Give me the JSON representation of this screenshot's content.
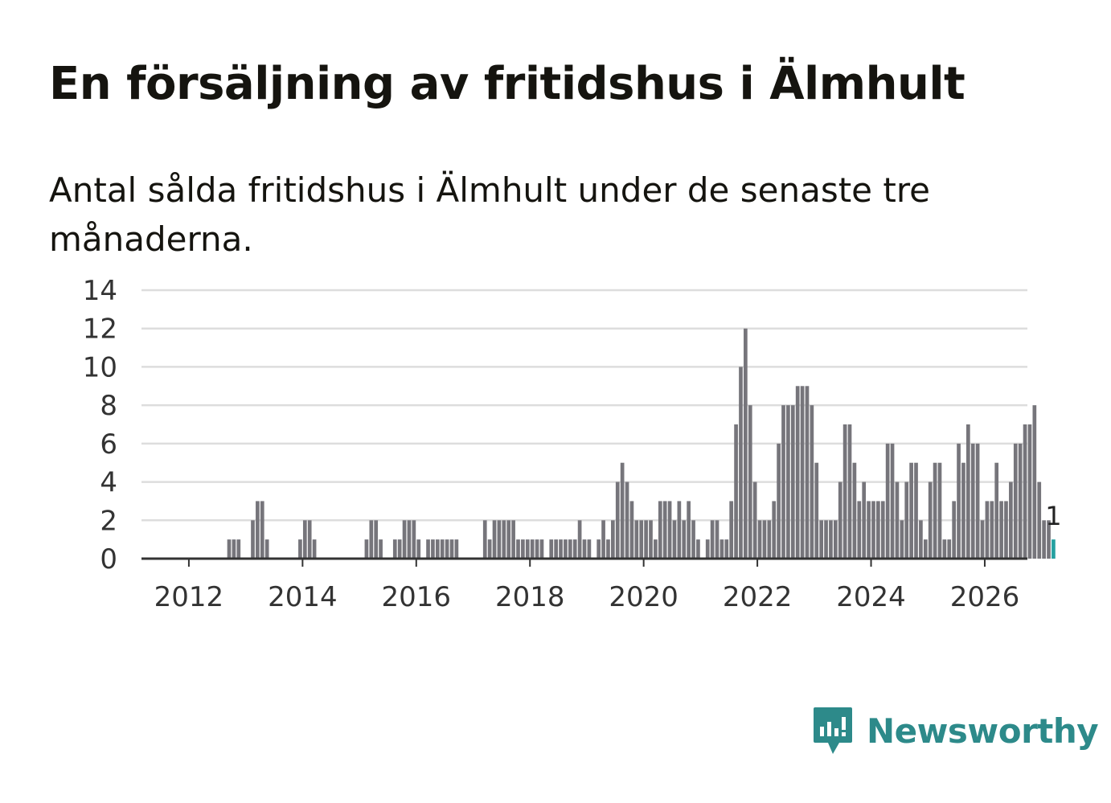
{
  "title": "En försäljning av fritidshus i Älmhult",
  "subtitle": "Antal sålda fritidshus i Älmhult under de senaste tre månaderna.",
  "brand": "Newsworthy",
  "colors": {
    "bar": "#76757b",
    "highlight": "#24a0a0",
    "brand": "#2d8a8a"
  },
  "chart_data": {
    "type": "bar",
    "title": "En försäljning av fritidshus i Älmhult",
    "xlabel": "",
    "ylabel": "",
    "ylim": [
      0,
      14
    ],
    "yticks": [
      0,
      2,
      4,
      6,
      8,
      10,
      12,
      14
    ],
    "xticks": [
      "2012",
      "2014",
      "2016",
      "2018",
      "2020",
      "2022",
      "2024",
      "2026"
    ],
    "x_range": [
      "2011-03",
      "2026-10"
    ],
    "start_month": "2011-09",
    "grid": true,
    "highlight_label": "1",
    "series": [
      {
        "name": "Antal sålda fritidshus",
        "values": [
          0,
          0,
          0,
          0,
          0,
          0,
          0,
          0,
          0,
          0,
          0,
          0,
          1,
          1,
          1,
          0,
          0,
          2,
          3,
          3,
          1,
          0,
          0,
          0,
          0,
          0,
          0,
          1,
          2,
          2,
          1,
          0,
          0,
          0,
          0,
          0,
          0,
          0,
          0,
          0,
          0,
          1,
          2,
          2,
          1,
          0,
          0,
          1,
          1,
          2,
          2,
          2,
          1,
          0,
          1,
          1,
          1,
          1,
          1,
          1,
          1,
          0,
          0,
          0,
          0,
          0,
          2,
          1,
          2,
          2,
          2,
          2,
          2,
          1,
          1,
          1,
          1,
          1,
          1,
          0,
          1,
          1,
          1,
          1,
          1,
          1,
          2,
          1,
          1,
          0,
          1,
          2,
          1,
          2,
          4,
          5,
          4,
          3,
          2,
          2,
          2,
          2,
          1,
          3,
          3,
          3,
          2,
          3,
          2,
          3,
          2,
          1,
          0,
          1,
          2,
          2,
          1,
          1,
          3,
          7,
          10,
          12,
          8,
          4,
          2,
          2,
          2,
          3,
          6,
          8,
          8,
          8,
          9,
          9,
          9,
          8,
          5,
          2,
          2,
          2,
          2,
          4,
          7,
          7,
          5,
          3,
          4,
          3,
          3,
          3,
          3,
          6,
          6,
          4,
          2,
          4,
          5,
          5,
          2,
          1,
          4,
          5,
          5,
          1,
          1,
          3,
          6,
          5,
          7,
          6,
          6,
          2,
          3,
          3,
          5,
          3,
          3,
          4,
          6,
          6,
          7,
          7,
          8,
          4,
          2,
          2,
          1
        ]
      }
    ]
  }
}
